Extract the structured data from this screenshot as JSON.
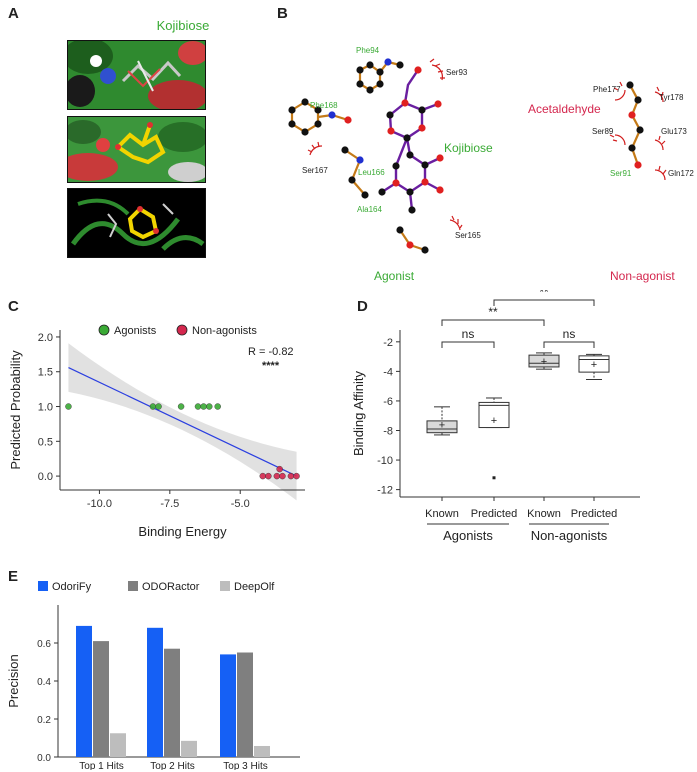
{
  "panels": {
    "A": {
      "letter": "A",
      "title": "Kojibiose"
    },
    "B": {
      "letter": "B",
      "agonist_compound": "Kojibiose",
      "agonist_caption": "Agonist",
      "nonagonist_compound": "Acetaldehyde",
      "nonagonist_caption": "Non-agonist",
      "agonist_residues": [
        "Phe94",
        "Ser93",
        "Phe168",
        "Ser167",
        "Leu166",
        "Ala164",
        "Ser165"
      ],
      "nonagonist_residues": [
        "Phe177",
        "Tyr178",
        "Ser89",
        "Glu173",
        "Ser91",
        "Gln172"
      ]
    },
    "C": {
      "letter": "C"
    },
    "D": {
      "letter": "D"
    },
    "E": {
      "letter": "E"
    }
  },
  "colors": {
    "agonist_green": "#3aaa35",
    "nonagonist_red": "#d4274e",
    "odorify": "#1560f5",
    "odoractor": "#7f7f7f",
    "deepolf": "#bdbdbd",
    "fit_line": "#2b3fe0"
  },
  "chart_data": [
    {
      "id": "C",
      "type": "scatter",
      "xlabel": "Binding Energy",
      "ylabel": "Predicted Probability",
      "xlim": [
        -11.4,
        -2.7
      ],
      "ylim": [
        -0.2,
        2.1
      ],
      "xticks": [
        -10.0,
        -7.5,
        -5.0
      ],
      "xtick_labels": [
        "-10.0",
        "-7.5",
        "-5.0"
      ],
      "yticks": [
        0.0,
        0.5,
        1.0,
        1.5,
        2.0
      ],
      "ytick_labels": [
        "0.0",
        "0.5",
        "1.0",
        "1.5",
        "2.0"
      ],
      "legend": [
        "Agonists",
        "Non-agonists"
      ],
      "legend_position": "top",
      "annotation_r": "R = -0.82",
      "annotation_sig": "****",
      "fit_line": {
        "x": [
          -11.1,
          -3.0
        ],
        "y": [
          1.56,
          0.0
        ]
      },
      "series": [
        {
          "name": "Agonists",
          "points": [
            [
              -11.1,
              1.0
            ],
            [
              -8.1,
              1.0
            ],
            [
              -7.9,
              1.0
            ],
            [
              -7.1,
              1.0
            ],
            [
              -6.5,
              1.0
            ],
            [
              -6.3,
              1.0
            ],
            [
              -6.1,
              1.0
            ],
            [
              -5.8,
              1.0
            ]
          ]
        },
        {
          "name": "Non-agonists",
          "points": [
            [
              -4.2,
              0.0
            ],
            [
              -4.0,
              0.0
            ],
            [
              -3.7,
              0.0
            ],
            [
              -3.6,
              0.1
            ],
            [
              -3.5,
              0.0
            ],
            [
              -3.2,
              0.0
            ],
            [
              -3.0,
              0.0
            ]
          ]
        }
      ]
    },
    {
      "id": "D",
      "type": "box",
      "ylabel": "Binding Affinity",
      "ylim": [
        -12.5,
        -1.2
      ],
      "yticks": [
        -12,
        -10,
        -8,
        -6,
        -4,
        -2
      ],
      "ytick_labels": [
        "-12",
        "-10",
        "-8",
        "-6",
        "-4",
        "-2"
      ],
      "categories": [
        "Known",
        "Predicted",
        "Known",
        "Predicted"
      ],
      "groups": [
        "Agonists",
        "Non-agonists"
      ],
      "boxes": [
        {
          "category": "Known",
          "group": "Agonists",
          "fill": "#d9d9d9",
          "whislo": -8.3,
          "q1": -8.15,
          "med": -7.9,
          "q3": -7.35,
          "whishi": -6.4,
          "mean": -7.6,
          "outliers": []
        },
        {
          "category": "Predicted",
          "group": "Agonists",
          "fill": "#ffffff",
          "whislo": -7.8,
          "q1": -7.8,
          "med": -6.3,
          "q3": -6.1,
          "whishi": -5.8,
          "mean": -7.3,
          "outliers": [
            -11.2
          ]
        },
        {
          "category": "Known",
          "group": "Non-agonists",
          "fill": "#d9d9d9",
          "whislo": -3.85,
          "q1": -3.7,
          "med": -3.45,
          "q3": -2.9,
          "whishi": -2.75,
          "mean": -3.3,
          "outliers": []
        },
        {
          "category": "Predicted",
          "group": "Non-agonists",
          "fill": "#ffffff",
          "whislo": -4.55,
          "q1": -4.05,
          "med": -3.2,
          "q3": -2.95,
          "whishi": -2.85,
          "mean": -3.5,
          "outliers": []
        }
      ],
      "comparisons": [
        {
          "from": 0,
          "to": 1,
          "label": "ns"
        },
        {
          "from": 2,
          "to": 3,
          "label": "ns"
        },
        {
          "from": 0,
          "to": 2,
          "label": "**"
        },
        {
          "from": 1,
          "to": 3,
          "label": "**"
        }
      ]
    },
    {
      "id": "E",
      "type": "bar",
      "ylabel": "Precision",
      "categories": [
        "Top 1 Hits",
        "Top 2 Hits",
        "Top 3 Hits"
      ],
      "ylim": [
        0,
        0.8
      ],
      "yticks": [
        0.0,
        0.2,
        0.4,
        0.6
      ],
      "ytick_labels": [
        "0.0",
        "0.2",
        "0.4",
        "0.6"
      ],
      "legend_position": "top-left",
      "series": [
        {
          "name": "OdoriFy",
          "values": [
            0.69,
            0.68,
            0.54
          ]
        },
        {
          "name": "ODORactor",
          "values": [
            0.61,
            0.57,
            0.55
          ]
        },
        {
          "name": "DeepOlf",
          "values": [
            0.125,
            0.085,
            0.058
          ]
        }
      ]
    }
  ]
}
